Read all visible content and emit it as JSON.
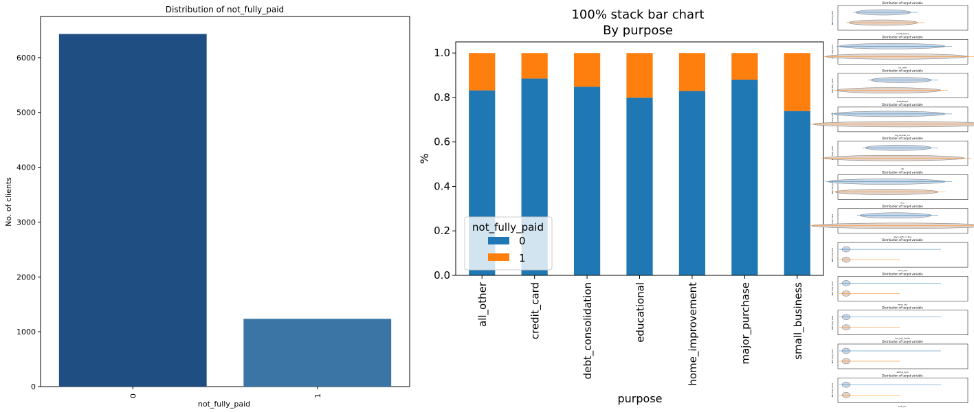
{
  "chart_data": [
    {
      "type": "bar",
      "title": "Distribution of not_fully_paid",
      "xlabel": "not_fully_paid",
      "ylabel": "No. of clients",
      "categories": [
        "0",
        "1"
      ],
      "values": [
        6431,
        1236
      ],
      "ylim": [
        0,
        6750
      ],
      "yticks": [
        0,
        1000,
        2000,
        3000,
        4000,
        5000,
        6000
      ],
      "colors": [
        "#1f4e82",
        "#3a75a6"
      ],
      "grid": false
    },
    {
      "type": "bar",
      "stacked": true,
      "title": "100% stack bar chart\nBy purpose",
      "title_lines": [
        "100% stack bar chart",
        "By purpose"
      ],
      "xlabel": "purpose",
      "ylabel": "%",
      "categories": [
        "all_other",
        "credit_card",
        "debt_consolidation",
        "educational",
        "home_improvement",
        "major_purchase",
        "small_business"
      ],
      "series": [
        {
          "name": "0",
          "values": [
            0.832,
            0.885,
            0.848,
            0.799,
            0.829,
            0.88,
            0.739
          ],
          "color": "#1f77b4"
        },
        {
          "name": "1",
          "values": [
            0.168,
            0.115,
            0.152,
            0.201,
            0.171,
            0.12,
            0.261
          ],
          "color": "#ff7f0e"
        }
      ],
      "ylim": [
        0,
        1.05
      ],
      "yticks": [
        "0.0",
        "0.2",
        "0.4",
        "0.6",
        "0.8",
        "1.0"
      ],
      "legend": {
        "title": "not_fully_paid",
        "position": "lower-left"
      },
      "grid": false
    }
  ],
  "thumbnails": {
    "title": "Distribution of target variable",
    "ylabel": "Not fully paid",
    "xlabels": [
      "credit_policy",
      "int_rate",
      "installment",
      "log_annual_inc",
      "dti",
      "fico",
      "days_with_cr_line",
      "revol_bal",
      "revol_util",
      "inq_last_6mths",
      "delinq_2yrs",
      "pub_rec"
    ],
    "colors": [
      "#1f77b4",
      "#ff7f0e",
      "#c8c8c8"
    ]
  }
}
